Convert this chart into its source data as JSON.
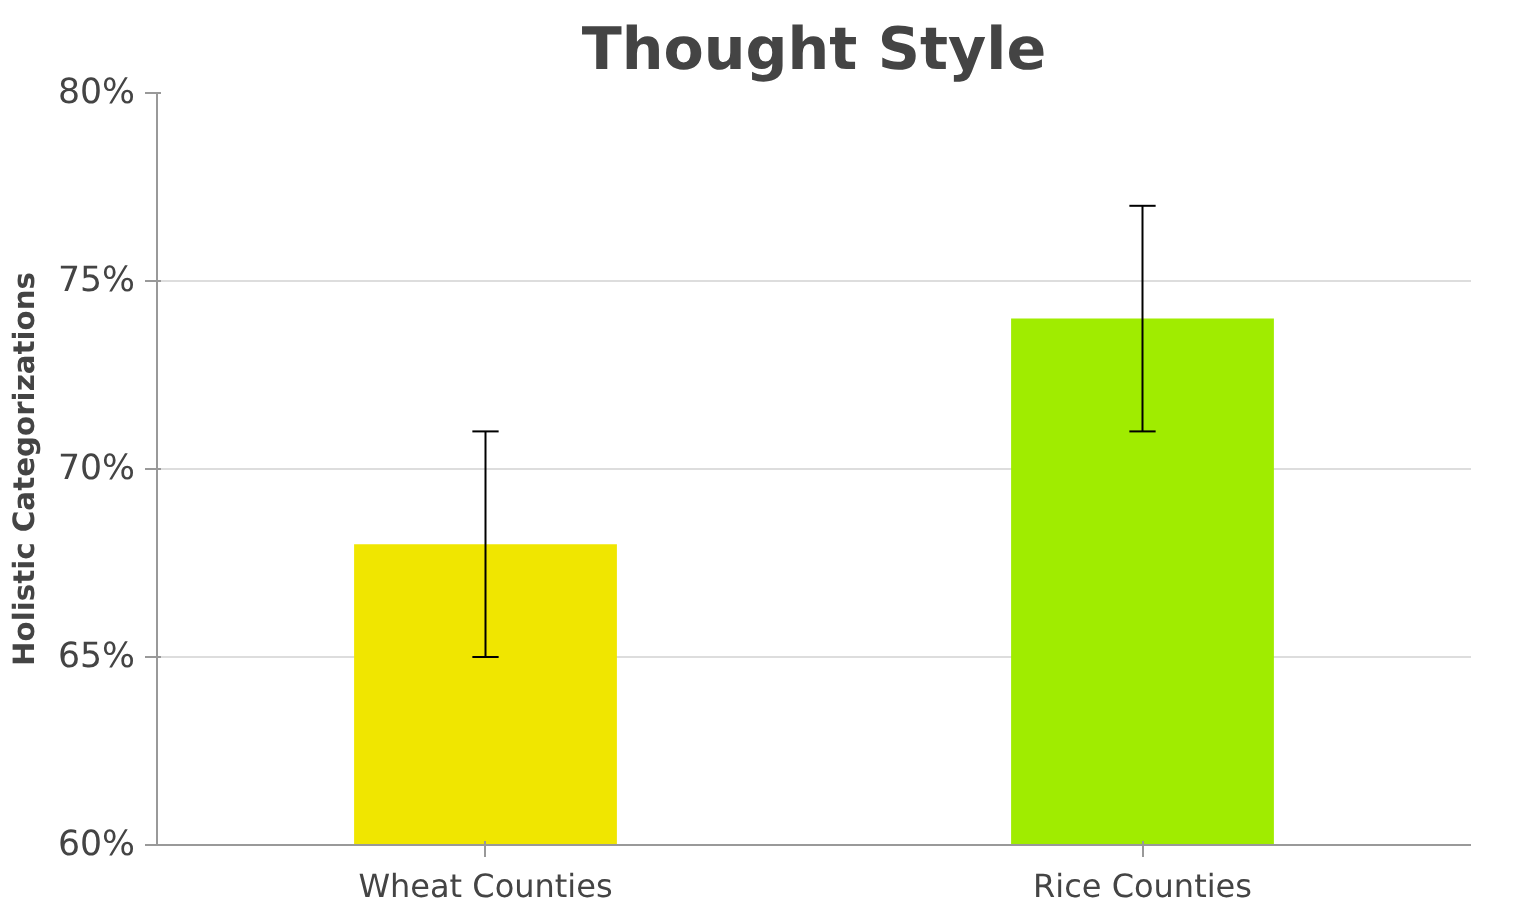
{
  "chart_data": {
    "type": "bar",
    "title": "Thought Style",
    "ylabel": "Holistic Categorizations",
    "categories": [
      "Wheat Counties",
      "Rice Counties"
    ],
    "values": [
      68,
      74
    ],
    "colors": [
      "#f0e600",
      "#a0ec00"
    ],
    "errors": [
      3,
      3
    ],
    "ylim": [
      60,
      80
    ],
    "yticks": [
      {
        "value": 60,
        "label": "60%"
      },
      {
        "value": 65,
        "label": "65%"
      },
      {
        "value": 70,
        "label": "70%"
      },
      {
        "value": 75,
        "label": "75%"
      },
      {
        "value": 80,
        "label": "80%"
      }
    ],
    "grid": "y"
  }
}
